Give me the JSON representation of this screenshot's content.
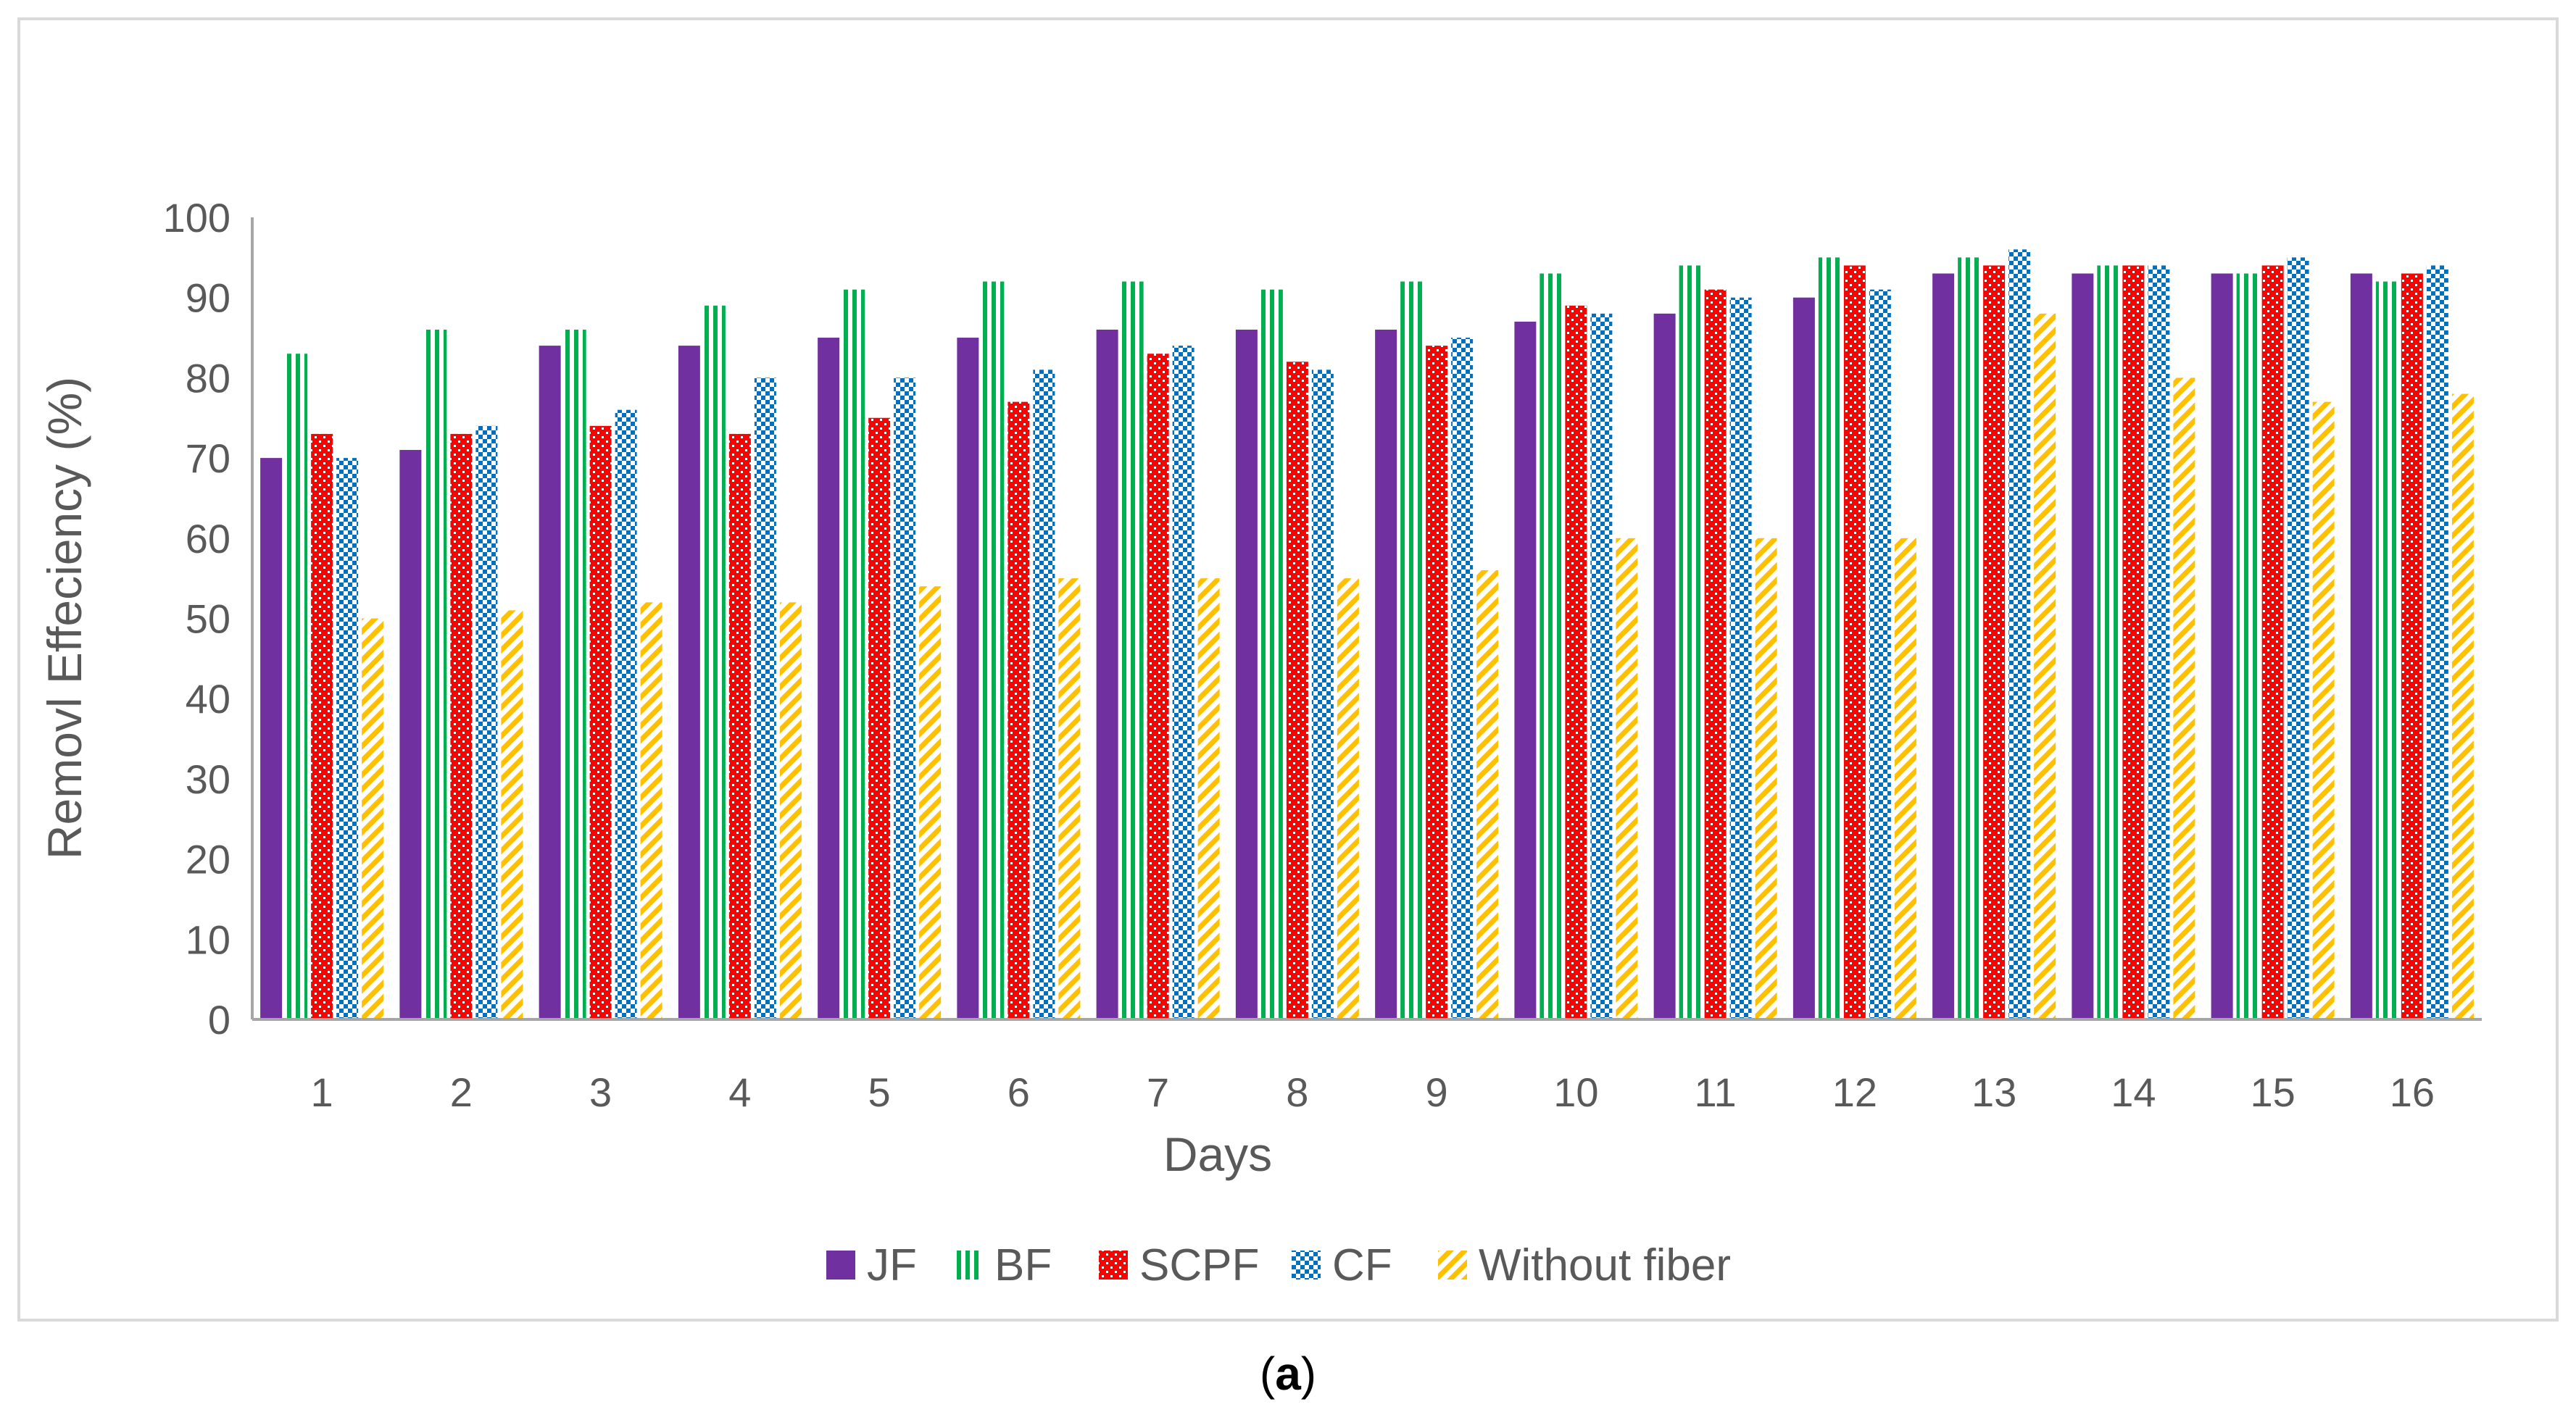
{
  "chart_data": {
    "type": "bar",
    "title": "",
    "xlabel": "Days",
    "ylabel": "Removl Effeciency (%)",
    "ylim": [
      0,
      100
    ],
    "yticks": [
      0,
      10,
      20,
      30,
      40,
      50,
      60,
      70,
      80,
      90,
      100
    ],
    "categories": [
      "1",
      "2",
      "3",
      "4",
      "5",
      "6",
      "7",
      "8",
      "9",
      "10",
      "11",
      "12",
      "13",
      "14",
      "15",
      "16"
    ],
    "series": [
      {
        "name": "JF",
        "color": "#7030a0",
        "pattern": "solid",
        "values": [
          70,
          71,
          84,
          84,
          85,
          85,
          86,
          86,
          86,
          87,
          88,
          90,
          93,
          93,
          93,
          93
        ]
      },
      {
        "name": "BF",
        "color": "#00b050",
        "pattern": "vertical-stripes",
        "values": [
          83,
          86,
          86,
          89,
          91,
          92,
          92,
          91,
          92,
          93,
          94,
          95,
          95,
          94,
          93,
          92
        ]
      },
      {
        "name": "SCPF",
        "color": "#ff0000",
        "pattern": "dots",
        "values": [
          73,
          73,
          74,
          73,
          75,
          77,
          83,
          82,
          84,
          89,
          91,
          94,
          94,
          94,
          94,
          93
        ]
      },
      {
        "name": "CF",
        "color": "#0070c0",
        "pattern": "checker",
        "values": [
          70,
          74,
          76,
          80,
          80,
          81,
          84,
          81,
          85,
          88,
          90,
          91,
          96,
          94,
          95,
          94
        ]
      },
      {
        "name": "Without fiber",
        "color": "#ffc000",
        "pattern": "diagonal",
        "values": [
          50,
          51,
          52,
          52,
          54,
          55,
          55,
          55,
          56,
          60,
          60,
          60,
          88,
          80,
          77,
          78
        ]
      }
    ],
    "legend_position": "bottom",
    "grid": false
  },
  "caption": {
    "open": "(",
    "letter": "a",
    "close": ")"
  },
  "colors": {
    "axis": "#a6a6a6",
    "frame": "#d9d9d9",
    "text": "#595959"
  }
}
